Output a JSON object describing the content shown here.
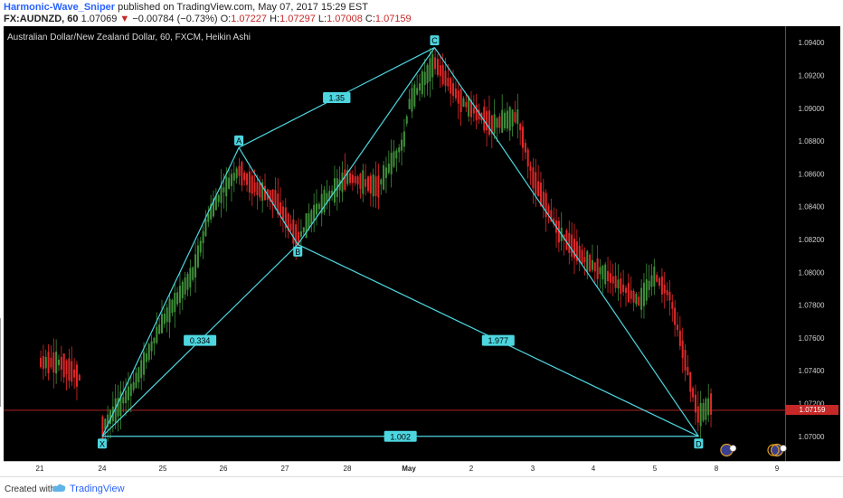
{
  "header": {
    "user": "Harmonic-Wave_Sniper",
    "published": "published on TradingView.com, May 07, 2017 15:29 EST",
    "symbol": "FX:AUDNZD, 60",
    "last": "1.07069",
    "change": "−0.00784 (−0.73%)",
    "o_label": "O:",
    "o": "1.07227",
    "h_label": "H:",
    "h": "1.07297",
    "l_label": "L:",
    "l": "1.07008",
    "c_label": "C:",
    "c": "1.07159"
  },
  "chart_data": {
    "type": "candlestick",
    "title": "Australian Dollar/New Zealand Dollar, 60, FXCM, Heikin Ashi",
    "ylim": [
      1.0685,
      1.095
    ],
    "y_ticks": [
      "1.09400",
      "1.09200",
      "1.09000",
      "1.08800",
      "1.08600",
      "1.08400",
      "1.08200",
      "1.08000",
      "1.07800",
      "1.07600",
      "1.07400",
      "1.07200",
      "1.07000"
    ],
    "x_ticks": [
      "21",
      "24",
      "25",
      "26",
      "27",
      "28",
      "May",
      "2",
      "3",
      "4",
      "5",
      "8",
      "9"
    ],
    "last_price": "1.07159",
    "pattern_points": [
      {
        "label": "X",
        "date": "2017-04-24 00:00",
        "price": 1.07
      },
      {
        "label": "A",
        "date": "2017-04-26 06:00",
        "price": 1.0876
      },
      {
        "label": "B",
        "date": "2017-04-27 05:00",
        "price": 1.0817
      },
      {
        "label": "C",
        "date": "2017-05-01 10:00",
        "price": 1.0937
      },
      {
        "label": "D",
        "date": "2017-05-05 17:00",
        "price": 1.07
      }
    ],
    "ratios": [
      {
        "text": "0.334",
        "from": "X",
        "to": "B"
      },
      {
        "text": "1.35",
        "from": "A",
        "to": "C"
      },
      {
        "text": "1.977",
        "from": "B",
        "to": "D"
      },
      {
        "text": "1.002",
        "from": "X",
        "to": "D"
      }
    ],
    "bull_color": "#26a69a",
    "green_color": "#3f8f3a",
    "red_color": "#e02828",
    "pattern_color": "#4dd6e0",
    "arrow_color": "#9a9a9a"
  },
  "footer": {
    "created": "Created with",
    "brand": "TradingView"
  }
}
